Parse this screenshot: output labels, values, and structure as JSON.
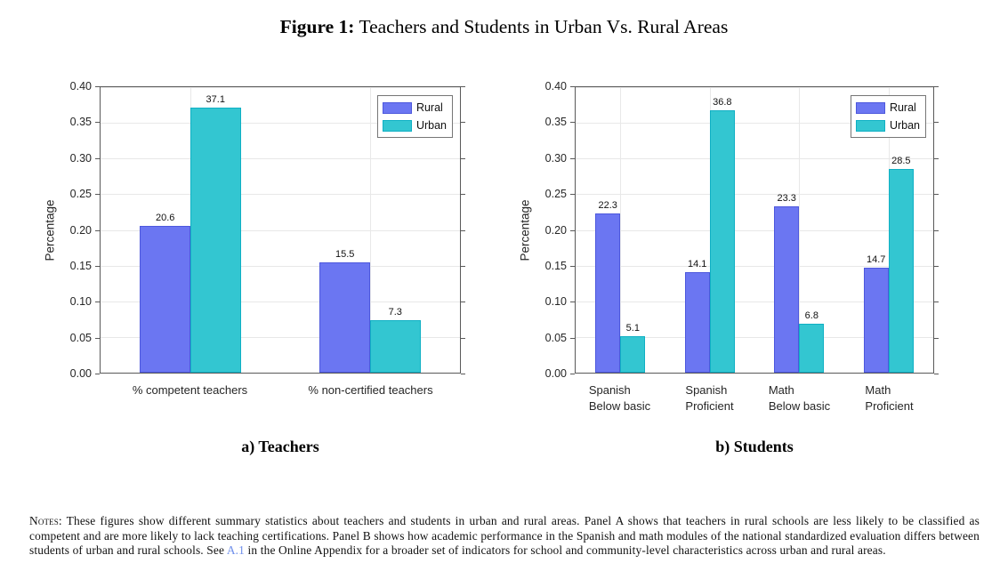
{
  "figure": {
    "title_prefix": "Figure 1:",
    "title_text": "Teachers and Students in Urban Vs. Rural Areas"
  },
  "panel_captions": {
    "a": "a) Teachers",
    "b": "b) Students"
  },
  "colors": {
    "rural_fill": "#6b76f2",
    "rural_edge": "#4d58dd",
    "urban_fill": "#33c6d1",
    "urban_edge": "#0fb0c4",
    "axis": "#595959",
    "grid": "#e8e8e8",
    "link": "#6f8feb"
  },
  "chart_data": [
    {
      "type": "bar",
      "panel": "a",
      "ylabel": "Percentage",
      "xlabel": "",
      "ylim": [
        0,
        0.4
      ],
      "grid": true,
      "legend_position": "top-right",
      "yticks": [
        "0.00",
        "0.05",
        "0.10",
        "0.15",
        "0.20",
        "0.25",
        "0.30",
        "0.35",
        "0.40"
      ],
      "categories": [
        "% competent teachers",
        "% non-certified teachers"
      ],
      "series": [
        {
          "name": "Rural",
          "values": [
            0.206,
            0.155
          ],
          "bar_labels": [
            "20.6",
            "15.5"
          ],
          "color": "#6b76f2",
          "edge": "#4d58dd"
        },
        {
          "name": "Urban",
          "values": [
            0.371,
            0.073
          ],
          "bar_labels": [
            "37.1",
            "7.3"
          ],
          "color": "#33c6d1",
          "edge": "#0fb0c4"
        }
      ]
    },
    {
      "type": "bar",
      "panel": "b",
      "ylabel": "Percentage",
      "xlabel": "",
      "ylim": [
        0,
        0.4
      ],
      "grid": true,
      "legend_position": "top-right",
      "yticks": [
        "0.00",
        "0.05",
        "0.10",
        "0.15",
        "0.20",
        "0.25",
        "0.30",
        "0.35",
        "0.40"
      ],
      "categories": [
        [
          "Spanish",
          "Below basic"
        ],
        [
          "Spanish",
          "Proficient"
        ],
        [
          "Math",
          "Below basic"
        ],
        [
          "Math",
          "Proficient"
        ]
      ],
      "series": [
        {
          "name": "Rural",
          "values": [
            0.223,
            0.141,
            0.233,
            0.147
          ],
          "bar_labels": [
            "22.3",
            "14.1",
            "23.3",
            "14.7"
          ],
          "color": "#6b76f2",
          "edge": "#4d58dd"
        },
        {
          "name": "Urban",
          "values": [
            0.051,
            0.368,
            0.068,
            0.285
          ],
          "bar_labels": [
            "5.1",
            "36.8",
            "6.8",
            "28.5"
          ],
          "color": "#33c6d1",
          "edge": "#0fb0c4"
        }
      ]
    }
  ],
  "notes": {
    "label": "Notes:",
    "body_before_link": " These figures show different summary statistics about teachers and students in urban and rural areas. Panel A shows that teachers in rural schools are less likely to be classified as competent and are more likely to lack teaching certifications. Panel B shows how academic performance in the Spanish and math modules of the national standardized evaluation differs between students of urban and rural schools. See ",
    "link_text": "A.1",
    "body_after_link": " in the Online Appendix for a broader set of indicators for school and community-level characteristics across urban and rural areas."
  }
}
